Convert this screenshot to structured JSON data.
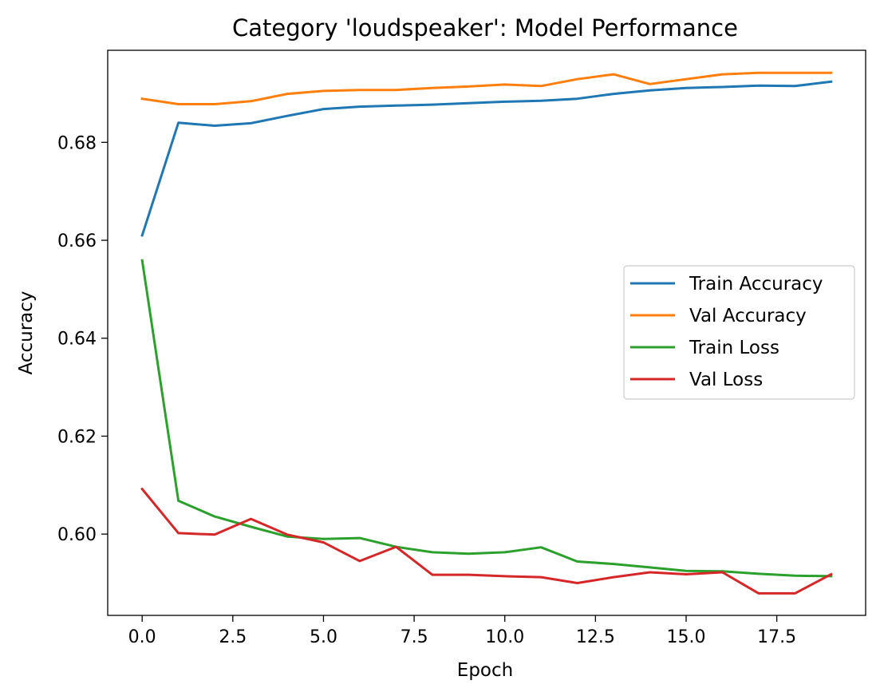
{
  "chart_data": {
    "type": "line",
    "title": "Category 'loudspeaker': Model Performance",
    "xlabel": "Epoch",
    "ylabel": "Accuracy",
    "xlim": [
      -0.95,
      19.95
    ],
    "ylim": [
      0.5834,
      0.6988
    ],
    "xticks": [
      0,
      2.5,
      5,
      7.5,
      10,
      12.5,
      15,
      17.5
    ],
    "xtick_labels": [
      "0.0",
      "2.5",
      "5.0",
      "7.5",
      "10.0",
      "12.5",
      "15.0",
      "17.5"
    ],
    "yticks": [
      0.6,
      0.62,
      0.64,
      0.66,
      0.68
    ],
    "ytick_labels": [
      "0.60",
      "0.62",
      "0.64",
      "0.66",
      "0.68"
    ],
    "grid": false,
    "legend_position": "center-right",
    "x": [
      0,
      1,
      2,
      3,
      4,
      5,
      6,
      7,
      8,
      9,
      10,
      11,
      12,
      13,
      14,
      15,
      16,
      17,
      18,
      19
    ],
    "series": [
      {
        "name": "Train Accuracy",
        "color": "#1f77b4",
        "values": [
          0.661,
          0.684,
          0.6834,
          0.6839,
          0.6854,
          0.6868,
          0.6873,
          0.6875,
          0.6877,
          0.688,
          0.6883,
          0.6885,
          0.6889,
          0.6899,
          0.6906,
          0.6911,
          0.6913,
          0.6916,
          0.6915,
          0.6924
        ]
      },
      {
        "name": "Val Accuracy",
        "color": "#ff7f0e",
        "values": [
          0.6889,
          0.6878,
          0.6878,
          0.6884,
          0.6899,
          0.6905,
          0.6907,
          0.6907,
          0.6911,
          0.6914,
          0.6918,
          0.6915,
          0.6929,
          0.6939,
          0.6919,
          0.6929,
          0.6939,
          0.6942,
          0.6942,
          0.6942
        ]
      },
      {
        "name": "Train Loss",
        "color": "#2ca02c",
        "values": [
          0.6559,
          0.6068,
          0.6036,
          0.6015,
          0.5995,
          0.599,
          0.5992,
          0.5974,
          0.5963,
          0.596,
          0.5963,
          0.5973,
          0.5944,
          0.5939,
          0.5932,
          0.5925,
          0.5924,
          0.5919,
          0.5915,
          0.5914
        ]
      },
      {
        "name": "Val Loss",
        "color": "#d62728",
        "values": [
          0.6092,
          0.6002,
          0.5999,
          0.6031,
          0.5999,
          0.5983,
          0.5945,
          0.5974,
          0.5917,
          0.5917,
          0.5914,
          0.5912,
          0.59,
          0.5912,
          0.5922,
          0.5918,
          0.5922,
          0.5879,
          0.5879,
          0.5918
        ]
      }
    ]
  }
}
